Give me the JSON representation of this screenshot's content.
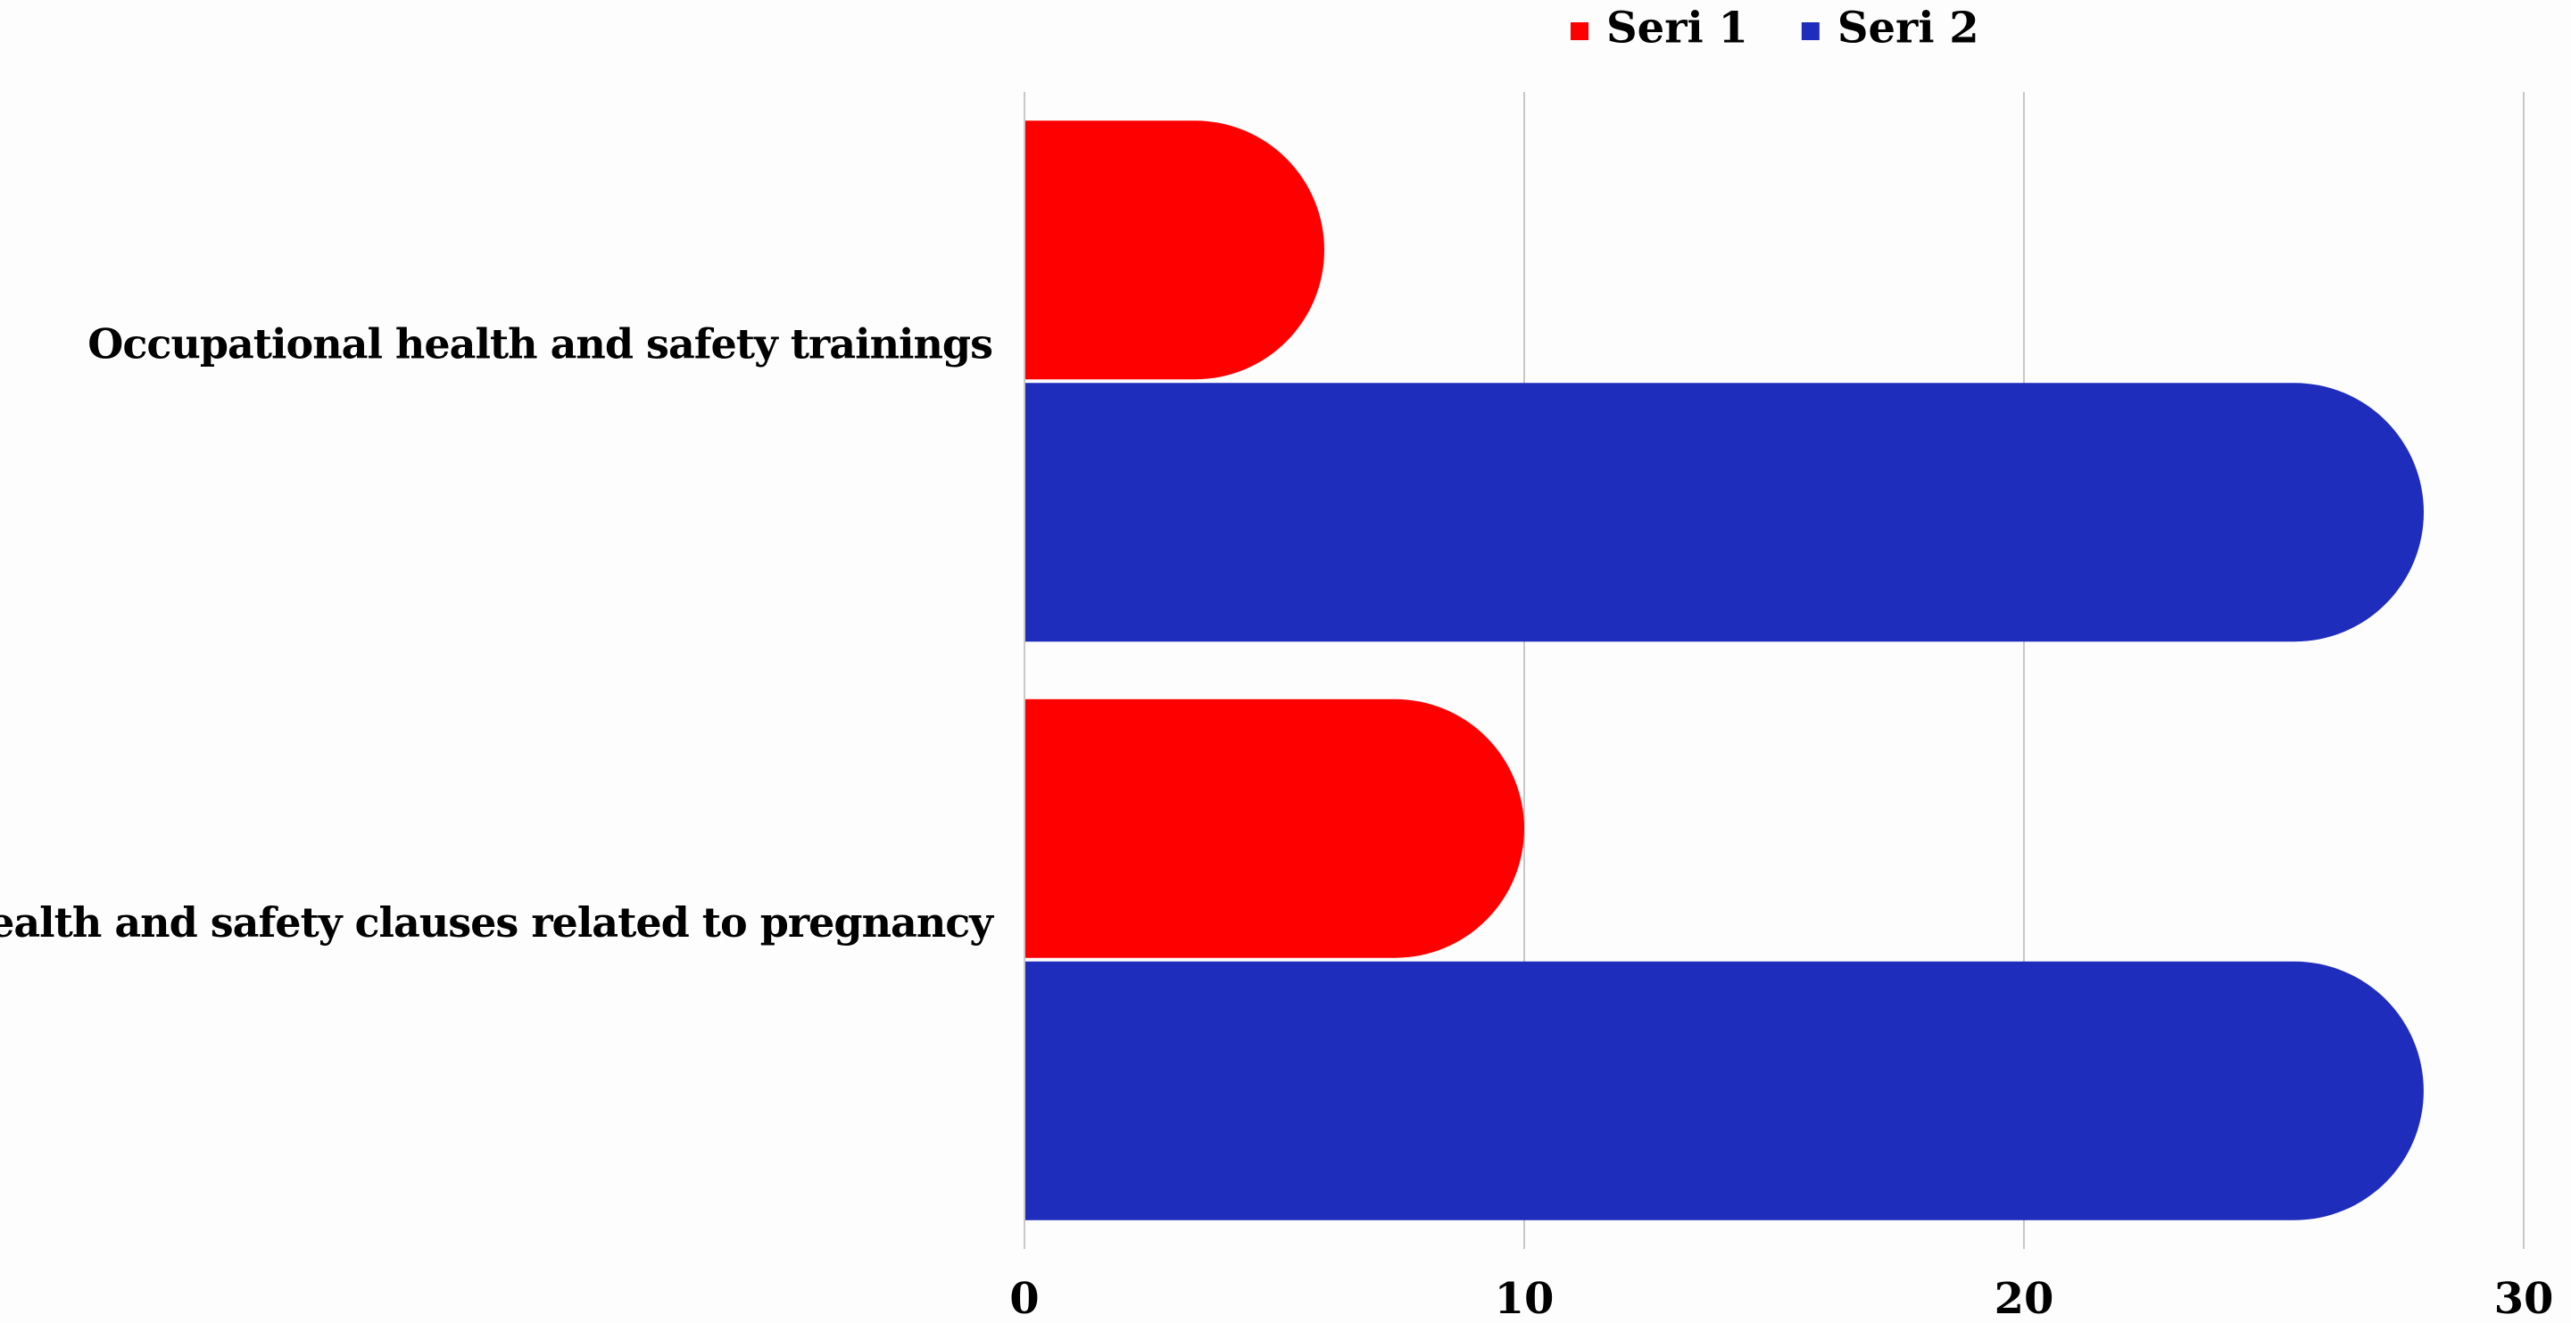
{
  "chart_data": {
    "type": "bar",
    "orientation": "horizontal",
    "title": "",
    "xlabel": "",
    "ylabel": "",
    "categories": [
      "Occupational health and safety trainings",
      "Health and safety clauses related to pregnancy"
    ],
    "series": [
      {
        "name": "Seri 1",
        "color": "#ff0000",
        "values": [
          6,
          10
        ]
      },
      {
        "name": "Seri 2",
        "color": "#1f2dbd",
        "values": [
          28,
          28
        ]
      }
    ],
    "xlim": [
      0,
      30
    ],
    "x_ticks": [
      0,
      10,
      20,
      30
    ],
    "grid": true,
    "legend_position": "top",
    "bar_end_style": "rounded"
  }
}
